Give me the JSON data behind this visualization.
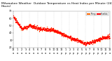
{
  "background_color": "#ffffff",
  "scatter_color_temp": "#ff0000",
  "scatter_color_heat": "#ff6600",
  "dot_size": 0.8,
  "ylim": [
    20,
    70
  ],
  "xlim": [
    0,
    1440
  ],
  "ytick_values": [
    20,
    30,
    40,
    50,
    60,
    70
  ],
  "grid_color": "#bbbbbb",
  "legend_temp_color": "#ff6600",
  "legend_heat_color": "#ff0000",
  "title_fontsize": 3.2,
  "tick_fontsize": 2.5,
  "xtick_every_minutes": 60
}
